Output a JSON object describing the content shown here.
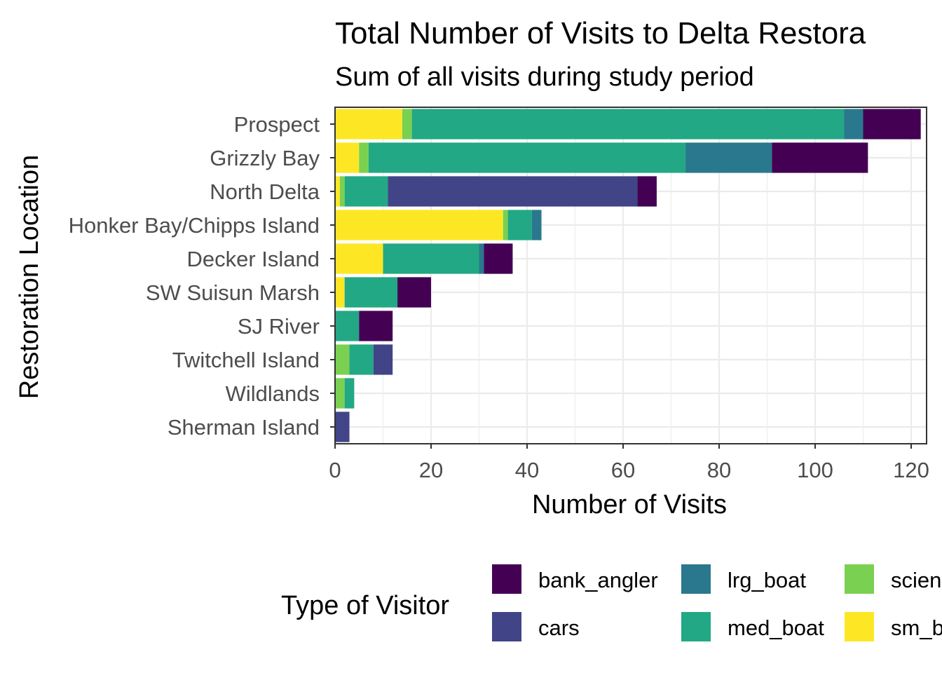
{
  "chart_data": {
    "type": "bar",
    "orientation": "horizontal",
    "stacked": true,
    "title": "Total Number of Visits to Delta Restora",
    "subtitle": "Sum of all visits during study period",
    "xlabel": "Number of Visits",
    "ylabel": "Restoration Location",
    "xlim": [
      0,
      122
    ],
    "xticks": [
      0,
      20,
      40,
      60,
      80,
      100,
      120
    ],
    "grid": true,
    "legend_position": "bottom",
    "categories": [
      "Sherman Island",
      "Wildlands",
      "Twitchell Island",
      "SJ River",
      "SW Suisun Marsh",
      "Decker Island",
      "Honker Bay/Chipps Island",
      "North Delta",
      "Grizzly Bay",
      "Prospect"
    ],
    "series": [
      {
        "name": "sm_b",
        "color": "#FDE725",
        "values": [
          0,
          0,
          0,
          0,
          2,
          10,
          35,
          1,
          5,
          14
        ]
      },
      {
        "name": "scien",
        "color": "#7AD151",
        "values": [
          0,
          2,
          3,
          0,
          0,
          0,
          1,
          1,
          2,
          2
        ]
      },
      {
        "name": "med_boat",
        "color": "#22A884",
        "values": [
          0,
          2,
          5,
          5,
          11,
          20,
          5,
          9,
          66,
          90
        ]
      },
      {
        "name": "lrg_boat",
        "color": "#2A788E",
        "values": [
          0,
          0,
          0,
          0,
          0,
          1,
          2,
          0,
          18,
          4
        ]
      },
      {
        "name": "cars",
        "color": "#414487",
        "values": [
          3,
          0,
          4,
          0,
          0,
          0,
          0,
          52,
          0,
          0
        ]
      },
      {
        "name": "bank_angler",
        "color": "#440154",
        "values": [
          0,
          0,
          0,
          7,
          7,
          6,
          0,
          4,
          20,
          12
        ]
      }
    ],
    "legend": {
      "title": "Type of Visitor",
      "order": [
        "bank_angler",
        "cars",
        "lrg_boat",
        "med_boat",
        "scien",
        "sm_b"
      ]
    }
  }
}
